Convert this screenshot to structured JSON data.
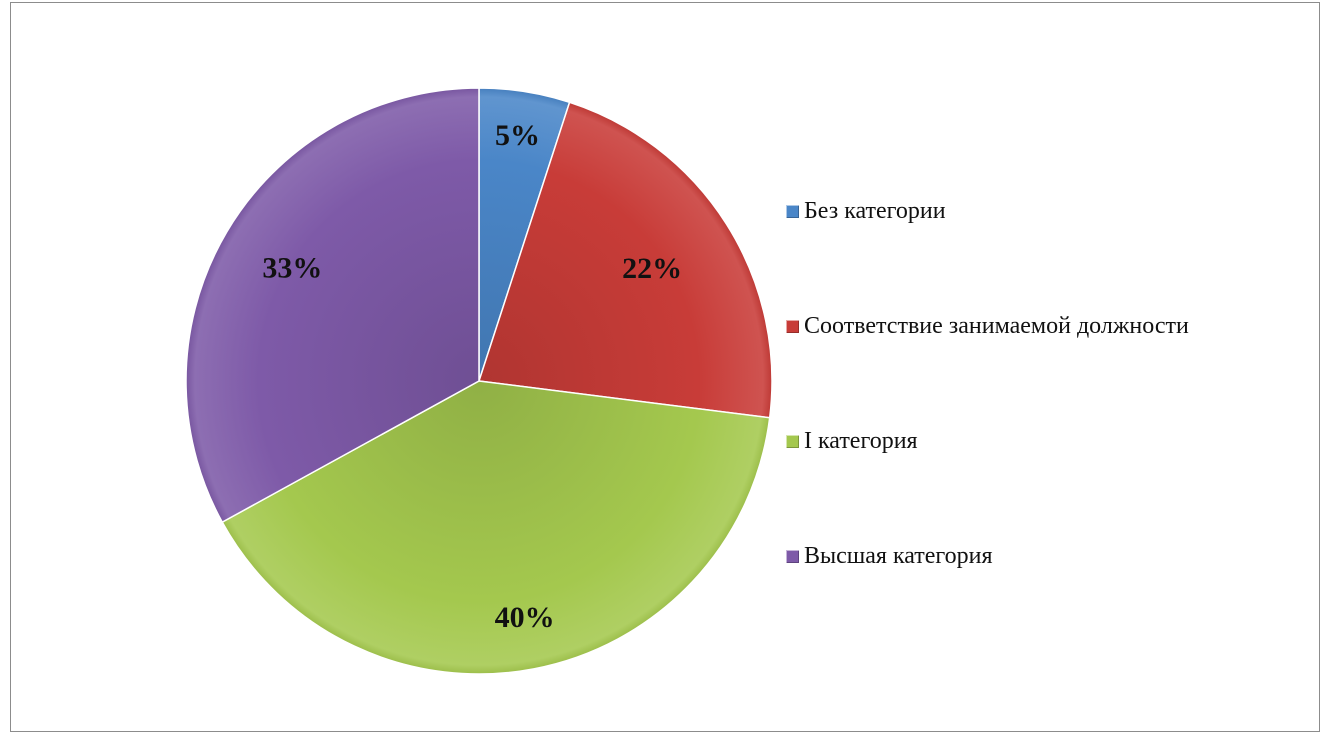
{
  "chart_data": {
    "type": "pie",
    "categories": [
      "Без категории",
      "Соответствие занимаемой должности",
      "I категория",
      "Высшая категория"
    ],
    "values": [
      5,
      22,
      40,
      33
    ],
    "data_labels": [
      "5%",
      "22%",
      "40%",
      "33%"
    ],
    "colors": [
      "#4a86c8",
      "#c83c38",
      "#a4c84e",
      "#7e5aa8"
    ],
    "legend_position": "right",
    "start_angle_deg": 0,
    "direction": "clockwise"
  }
}
